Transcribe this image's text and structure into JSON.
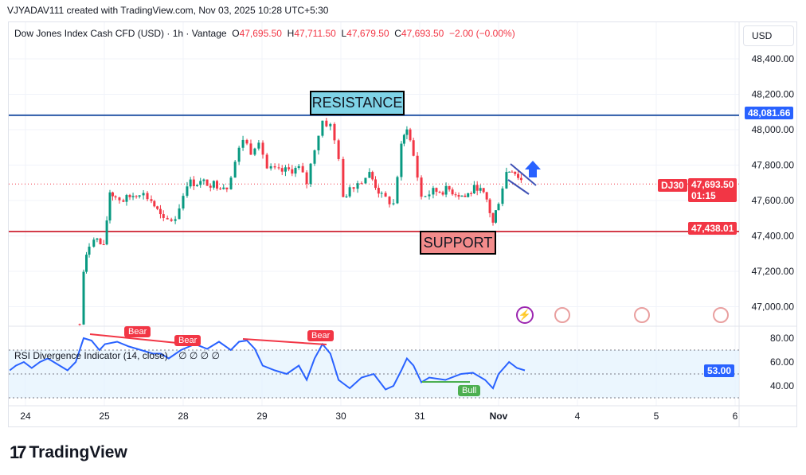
{
  "credit": "VJYADAV111 created with TradingView.com, Nov 03, 2025 10:28 UTC+5:30",
  "legend": {
    "symbol": "Dow Jones Index Cash CFD (USD) · 1h · Vantage",
    "o_label": "O",
    "o": "47,695.50",
    "h_label": "H",
    "h": "47,711.50",
    "l_label": "L",
    "l": "47,679.50",
    "c_label": "C",
    "c": "47,693.50",
    "change": "−2.00 (−0.00%)"
  },
  "currency": "USD",
  "price_axis": {
    "ticks": [
      "48,400.00",
      "48,200.00",
      "48,000.00",
      "47,800.00",
      "47,600.00",
      "47,400.00",
      "47,200.00",
      "47,000.00"
    ],
    "resistance_label": "48,081.66",
    "support_label": "47,438.01",
    "symbol_tag": "DJ30",
    "last_price": "47,693.50",
    "countdown": "01:15"
  },
  "annotations": {
    "resistance": "RESISTANCE",
    "support": "SUPPORT"
  },
  "rsi": {
    "title": "RSI Divergence Indicator (14, close)",
    "extra": "∅ ∅ ∅ ∅",
    "ticks": [
      "80.00",
      "60.00",
      "40.00"
    ],
    "current": "53.00",
    "bear1": "Bear",
    "bear2": "Bear",
    "bear3": "Bear",
    "bull": "Bull"
  },
  "time_axis": [
    "24",
    "25",
    "28",
    "29",
    "30",
    "31",
    "Nov",
    "4",
    "5",
    "6"
  ],
  "logo": "TradingView",
  "colors": {
    "up": "#089981",
    "down": "#f23645",
    "resistance": "#2962ff",
    "support": "#f23645",
    "rsi": "#2962ff",
    "resistance_box": "#7fd3e6",
    "support_box": "#f28b8b"
  },
  "icons": {
    "events": [
      "lightning-icon",
      "us-flag-icon",
      "us-flag-icon",
      "us-flag-icon"
    ],
    "arrow": "arrow-up-icon"
  },
  "chart_data": {
    "type": "candlestick",
    "resistance": 48081.66,
    "support": 47438.01,
    "last": 47693.5,
    "ylim": [
      46900,
      48450
    ],
    "closes": [
      [
        "24",
        16.5,
        46900
      ],
      [
        "24",
        17.7,
        47200
      ],
      [
        "24",
        19.4,
        47350
      ],
      [
        "24",
        20.8,
        47400
      ],
      [
        "24",
        23.8,
        47330
      ],
      [
        "25",
        1.7,
        47650
      ],
      [
        "25",
        3.4,
        47620
      ],
      [
        "25",
        5.8,
        47600
      ],
      [
        "25",
        10.7,
        47650
      ],
      [
        "25",
        14.3,
        47600
      ],
      [
        "25",
        18,
        47480
      ],
      [
        "25",
        21.6,
        47500
      ],
      [
        "28",
        1.2,
        47700
      ],
      [
        "28",
        7.3,
        47700
      ],
      [
        "28",
        13.3,
        47680
      ],
      [
        "28",
        15.8,
        47820
      ],
      [
        "28",
        18.2,
        47950
      ],
      [
        "28",
        20.6,
        47880
      ],
      [
        "28",
        23,
        47950
      ],
      [
        "29",
        1.5,
        47780
      ],
      [
        "29",
        5.1,
        47760
      ],
      [
        "29",
        11.2,
        47780
      ],
      [
        "29",
        13.6,
        47700
      ],
      [
        "29",
        16,
        47900
      ],
      [
        "29",
        18.4,
        48050
      ],
      [
        "29",
        20.8,
        48020
      ],
      [
        "29",
        23.3,
        47850
      ],
      [
        "30",
        0.7,
        47600
      ],
      [
        "30",
        2.7,
        47680
      ],
      [
        "30",
        5.1,
        47700
      ],
      [
        "30",
        8.7,
        47750
      ],
      [
        "30",
        12.4,
        47620
      ],
      [
        "30",
        16,
        47580
      ],
      [
        "30",
        18.4,
        47900
      ],
      [
        "30",
        20.1,
        48020
      ],
      [
        "30",
        22.1,
        47850
      ],
      [
        "31",
        0.5,
        47620
      ],
      [
        "31",
        4.1,
        47650
      ],
      [
        "31",
        9,
        47660
      ],
      [
        "31",
        13.8,
        47620
      ],
      [
        "31",
        17.5,
        47680
      ],
      [
        "31",
        20.4,
        47600
      ],
      [
        "31",
        22.3,
        47470
      ],
      [
        "Nov",
        0,
        47600
      ],
      [
        "Nov",
        2.4,
        47760
      ],
      [
        "Nov",
        4.1,
        47780
      ],
      [
        "Nov",
        7.8,
        47693.5
      ]
    ],
    "rsi_ylim": [
      20,
      90
    ],
    "rsi_bands": [
      30,
      70
    ],
    "rsi": [
      [
        "24",
        -4.8,
        53
      ],
      [
        "24",
        -2.9,
        57
      ],
      [
        "24",
        -0.5,
        60
      ],
      [
        "24",
        1.9,
        55
      ],
      [
        "24",
        4.4,
        60
      ],
      [
        "24",
        6.8,
        63
      ],
      [
        "24",
        10.4,
        57
      ],
      [
        "24",
        12.8,
        53
      ],
      [
        "24",
        15.3,
        60
      ],
      [
        "24",
        17.7,
        80
      ],
      [
        "24",
        20.1,
        78
      ],
      [
        "24",
        22.5,
        70
      ],
      [
        "25",
        0.2,
        75
      ],
      [
        "25",
        3.9,
        77
      ],
      [
        "25",
        7.5,
        73
      ],
      [
        "25",
        11.2,
        70
      ],
      [
        "25",
        14.8,
        67
      ],
      [
        "25",
        17.2,
        67
      ],
      [
        "25",
        19.6,
        63
      ],
      [
        "25",
        23.3,
        70
      ],
      [
        "28",
        3.6,
        75
      ],
      [
        "28",
        7.3,
        71
      ],
      [
        "28",
        10.9,
        77
      ],
      [
        "28",
        14.5,
        70
      ],
      [
        "28",
        17,
        77
      ],
      [
        "28",
        19.4,
        78
      ],
      [
        "28",
        21.8,
        71
      ],
      [
        "29",
        0.2,
        57
      ],
      [
        "29",
        3.9,
        53
      ],
      [
        "29",
        7.5,
        50
      ],
      [
        "29",
        11.2,
        57
      ],
      [
        "29",
        13.6,
        45
      ],
      [
        "29",
        16,
        63
      ],
      [
        "29",
        18.4,
        75
      ],
      [
        "29",
        20.8,
        67
      ],
      [
        "29",
        23.3,
        45
      ],
      [
        "30",
        2.7,
        38
      ],
      [
        "30",
        6.3,
        47
      ],
      [
        "30",
        10,
        50
      ],
      [
        "30",
        13.6,
        37
      ],
      [
        "30",
        16,
        40
      ],
      [
        "30",
        18.4,
        53
      ],
      [
        "30",
        20.1,
        63
      ],
      [
        "30",
        22.1,
        57
      ],
      [
        "31",
        0.5,
        43
      ],
      [
        "31",
        2.9,
        47
      ],
      [
        "31",
        7.8,
        45
      ],
      [
        "31",
        12.6,
        50
      ],
      [
        "31",
        16.2,
        51
      ],
      [
        "31",
        19.9,
        45
      ],
      [
        "31",
        22.3,
        38
      ],
      [
        "Nov",
        0,
        50
      ],
      [
        "Nov",
        3.2,
        60
      ],
      [
        "Nov",
        5.6,
        55
      ],
      [
        "Nov",
        8,
        53
      ]
    ]
  }
}
